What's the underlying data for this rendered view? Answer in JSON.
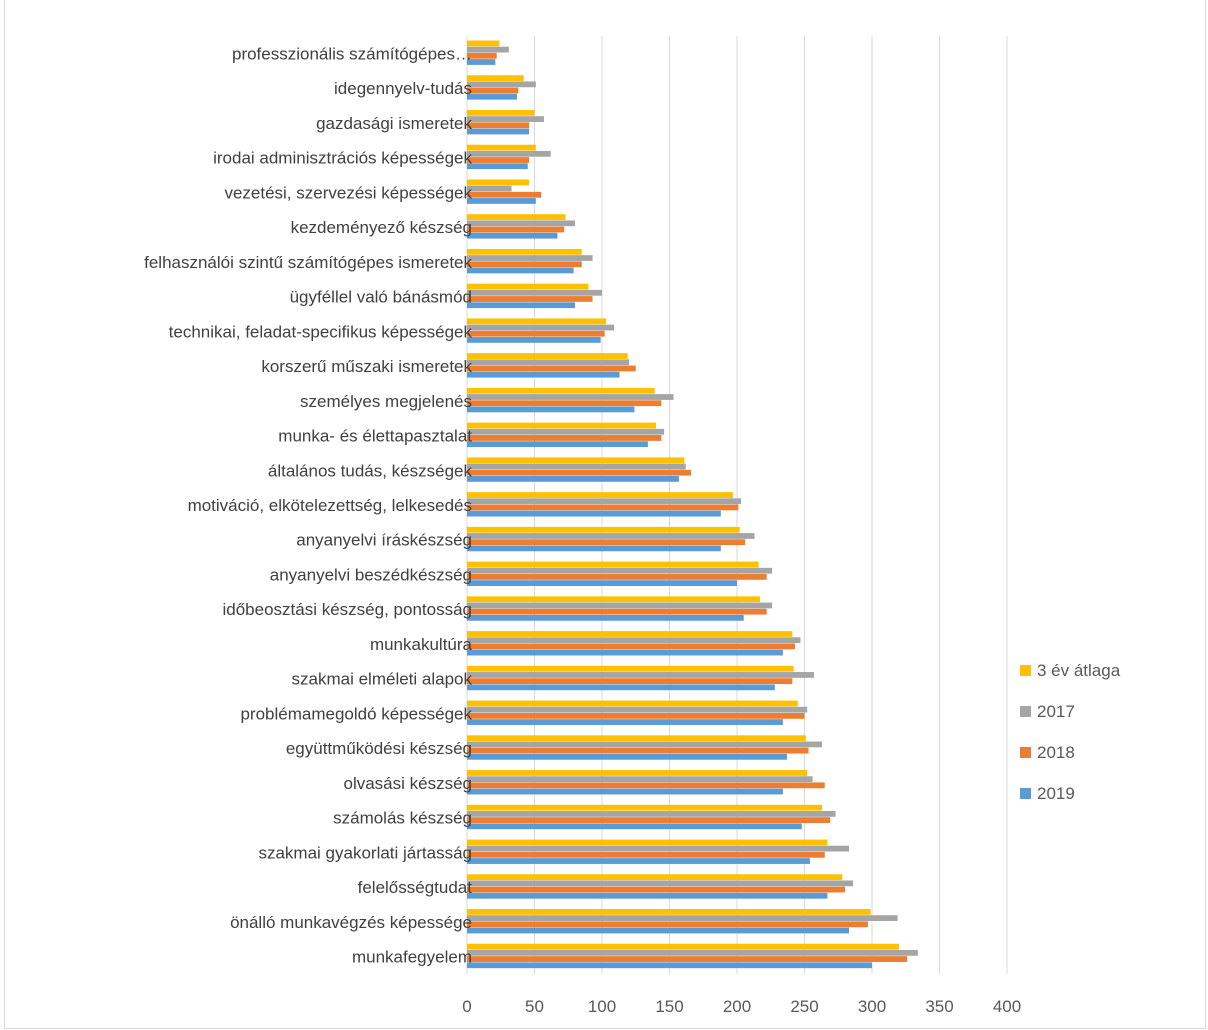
{
  "chart_data": {
    "type": "bar",
    "orientation": "horizontal",
    "categories": [
      "professzionális számítógépes…",
      "idegennyelv-tudás",
      "gazdasági ismeretek",
      "irodai adminisztrációs képességek",
      "vezetési, szervezési képességek",
      "kezdeményező készség",
      "felhasználói szintű számítógépes ismeretek",
      "ügyféllel való bánásmód",
      "technikai, feladat-specifikus képességek",
      "korszerű műszaki ismeretek",
      "személyes megjelenés",
      "munka- és élettapasztalat",
      "általános tudás, készségek",
      "motiváció, elkötelezettség, lelkesedés",
      "anyanyelvi íráskészség",
      "anyanyelvi beszédkészség",
      "időbeosztási készség, pontosság",
      "munkakultúra",
      "szakmai elméleti alapok",
      "problémamegoldó képességek",
      "együttműködési készség",
      "olvasási készség",
      "számolás készség",
      "szakmai gyakorlati jártasság",
      "felelősségtudat",
      "önálló munkavégzés képessége",
      "munkafegyelem"
    ],
    "series": [
      {
        "name": "3 év átlaga",
        "color": "#FFC000",
        "values": [
          24,
          42,
          50,
          51,
          46,
          73,
          85,
          90,
          103,
          119,
          139,
          140,
          161,
          197,
          202,
          216,
          217,
          241,
          242,
          245,
          251,
          252,
          263,
          267,
          278,
          299,
          320
        ]
      },
      {
        "name": "2017",
        "color": "#A5A5A5",
        "values": [
          31,
          51,
          57,
          62,
          33,
          80,
          93,
          100,
          109,
          120,
          153,
          146,
          162,
          203,
          213,
          226,
          226,
          247,
          257,
          252,
          263,
          256,
          273,
          283,
          286,
          319,
          334
        ]
      },
      {
        "name": "2018",
        "color": "#ED7D31",
        "values": [
          22,
          38,
          46,
          46,
          55,
          72,
          85,
          93,
          102,
          125,
          144,
          144,
          166,
          201,
          206,
          222,
          222,
          243,
          241,
          250,
          253,
          265,
          269,
          265,
          280,
          297,
          326
        ]
      },
      {
        "name": "2019",
        "color": "#5B9BD5",
        "values": [
          21,
          37,
          46,
          45,
          51,
          67,
          79,
          80,
          99,
          113,
          124,
          134,
          157,
          188,
          188,
          200,
          205,
          234,
          228,
          234,
          237,
          234,
          248,
          254,
          267,
          283,
          300
        ]
      }
    ],
    "xlim": [
      0,
      400
    ],
    "xticks": [
      "0",
      "50",
      "100",
      "150",
      "200",
      "250",
      "300",
      "350",
      "400"
    ],
    "grid": true,
    "legend_position": "right",
    "legend_order": [
      "3 év átlaga",
      "2017",
      "2018",
      "2019"
    ]
  }
}
